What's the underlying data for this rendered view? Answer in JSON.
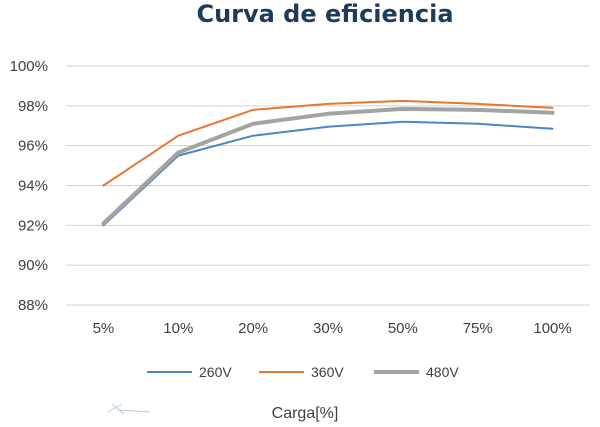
{
  "chart_data": {
    "type": "line",
    "title": "Curva de eficiencia",
    "xlabel": "Carga[%]",
    "ylabel": "",
    "categories": [
      "5%",
      "10%",
      "20%",
      "30%",
      "50%",
      "75%",
      "100%"
    ],
    "ylim": [
      88,
      100
    ],
    "yticks": [
      88,
      90,
      92,
      94,
      96,
      98,
      100
    ],
    "ytick_labels": [
      "88%",
      "90%",
      "92%",
      "94%",
      "96%",
      "98%",
      "100%"
    ],
    "grid": true,
    "legend_position": "bottom",
    "series": [
      {
        "name": "260V",
        "color": "#4a86c8",
        "width": 2,
        "values": [
          92.0,
          95.5,
          96.5,
          96.95,
          97.2,
          97.1,
          96.85
        ]
      },
      {
        "name": "360V",
        "color": "#e8772e",
        "width": 2,
        "values": [
          94.0,
          96.5,
          97.8,
          98.1,
          98.25,
          98.1,
          97.9
        ]
      },
      {
        "name": "480V",
        "color": "#a3a3a3",
        "width": 4,
        "values": [
          92.1,
          95.65,
          97.1,
          97.6,
          97.85,
          97.8,
          97.65
        ]
      }
    ]
  }
}
